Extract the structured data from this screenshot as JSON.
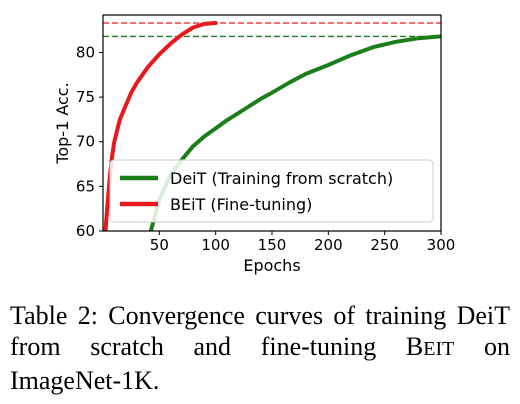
{
  "chart_data": {
    "type": "line",
    "xlabel": "Epochs",
    "ylabel": "Top-1 Acc.",
    "xlim": [
      0,
      300
    ],
    "ylim": [
      60,
      84.2
    ],
    "xticks": [
      50,
      100,
      150,
      200,
      250,
      300
    ],
    "yticks": [
      60,
      65,
      70,
      75,
      80
    ],
    "grid": false,
    "legend_position": "lower-right",
    "series": [
      {
        "name": "DeiT (Training from scratch)",
        "color": "#1a7f1a",
        "x": [
          42,
          50,
          60,
          70,
          80,
          90,
          100,
          110,
          120,
          130,
          140,
          150,
          165,
          180,
          200,
          220,
          240,
          260,
          280,
          300
        ],
        "y": [
          59.5,
          63.5,
          66.3,
          68.0,
          69.5,
          70.6,
          71.5,
          72.4,
          73.2,
          74.0,
          74.8,
          75.5,
          76.6,
          77.6,
          78.6,
          79.7,
          80.6,
          81.2,
          81.6,
          81.8
        ]
      },
      {
        "name": "BEiT (Fine-tuning)",
        "color": "#e8191d",
        "x": [
          2,
          4,
          6,
          8,
          10,
          15,
          20,
          25,
          30,
          40,
          50,
          60,
          70,
          80,
          90,
          100
        ],
        "y": [
          59.5,
          63.0,
          66.0,
          68.3,
          70.0,
          72.5,
          74.0,
          75.5,
          76.6,
          78.4,
          79.8,
          81.0,
          82.0,
          82.8,
          83.2,
          83.3
        ]
      }
    ],
    "reference_lines": [
      {
        "y": 83.3,
        "color": "#e8191d",
        "style": "dashed"
      },
      {
        "y": 81.8,
        "color": "#1a7f1a",
        "style": "dashed"
      }
    ]
  },
  "caption": {
    "prefix": "Table 2:  Convergence curves of training DeiT from scratch and fine-tuning B",
    "model_small_caps": "EIT",
    "suffix": " on ImageNet-1K."
  }
}
